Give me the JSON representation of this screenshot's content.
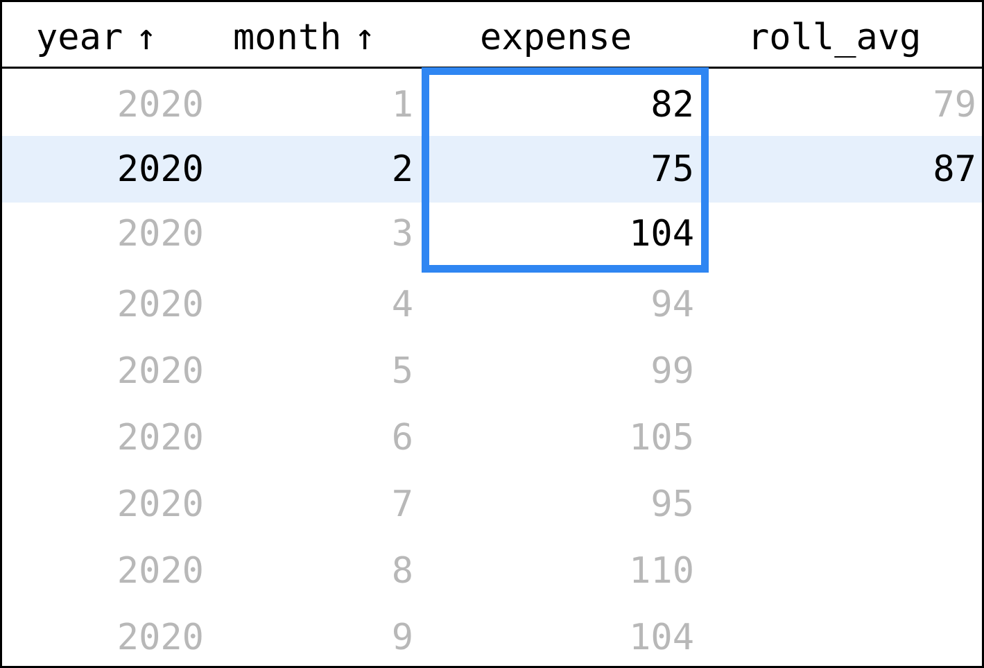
{
  "columns": {
    "year": {
      "label": "year",
      "sort_icon": "↑"
    },
    "month": {
      "label": "month",
      "sort_icon": "↑"
    },
    "expense": {
      "label": "expense"
    },
    "roll_avg": {
      "label": "roll_avg"
    }
  },
  "rows": [
    {
      "year": "2020",
      "month": "1",
      "expense": "82",
      "roll_avg": "79",
      "state": "faded-partial"
    },
    {
      "year": "2020",
      "month": "2",
      "expense": "75",
      "roll_avg": "87",
      "state": "current"
    },
    {
      "year": "2020",
      "month": "3",
      "expense": "104",
      "roll_avg": "",
      "state": "in-window"
    },
    {
      "year": "2020",
      "month": "4",
      "expense": "94",
      "roll_avg": "",
      "state": "faded"
    },
    {
      "year": "2020",
      "month": "5",
      "expense": "99",
      "roll_avg": "",
      "state": "faded"
    },
    {
      "year": "2020",
      "month": "6",
      "expense": "105",
      "roll_avg": "",
      "state": "faded"
    },
    {
      "year": "2020",
      "month": "7",
      "expense": "95",
      "roll_avg": "",
      "state": "faded"
    },
    {
      "year": "2020",
      "month": "8",
      "expense": "110",
      "roll_avg": "",
      "state": "faded"
    },
    {
      "year": "2020",
      "month": "9",
      "expense": "104",
      "roll_avg": "",
      "state": "faded"
    }
  ],
  "colors": {
    "highlight_row": "#e6f0fc",
    "window_border": "#2f86f2",
    "faded_text": "#b8b8b8",
    "active_text": "#000000"
  }
}
